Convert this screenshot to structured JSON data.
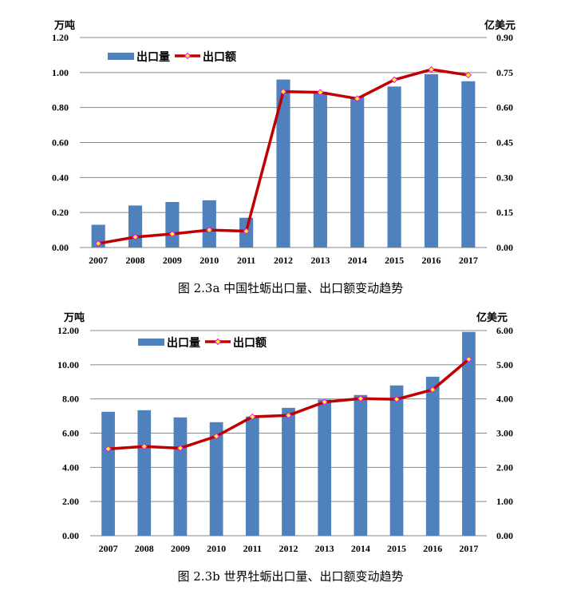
{
  "chart_data": [
    {
      "type": "bar+line",
      "caption": "图 2.3a    中国牡蛎出口量、出口额变动趋势",
      "left_unit": "万吨",
      "right_unit": "亿美元",
      "categories": [
        "2007",
        "2008",
        "2009",
        "2010",
        "2011",
        "2012",
        "2013",
        "2014",
        "2015",
        "2016",
        "2017"
      ],
      "left_ticks": [
        "0.00",
        "0.20",
        "0.40",
        "0.60",
        "0.80",
        "1.00",
        "1.20"
      ],
      "right_ticks": [
        "0.00",
        "0.15",
        "0.30",
        "0.45",
        "0.60",
        "0.75",
        "0.90"
      ],
      "left_ylim": [
        0,
        1.2
      ],
      "right_ylim": [
        0,
        0.9
      ],
      "grid": true,
      "legend_placement": "top-left",
      "series": [
        {
          "name": "出口量",
          "kind": "bar",
          "axis": "left",
          "color": "#4F81BD",
          "values": [
            0.13,
            0.24,
            0.26,
            0.27,
            0.17,
            0.96,
            0.89,
            0.86,
            0.92,
            0.99,
            0.95
          ]
        },
        {
          "name": "出口额",
          "kind": "line",
          "axis": "right",
          "color": "#C00000",
          "marker_color": "#FFFF00",
          "values": [
            0.017,
            0.045,
            0.058,
            0.075,
            0.07,
            0.668,
            0.665,
            0.638,
            0.719,
            0.763,
            0.739
          ]
        }
      ]
    },
    {
      "type": "bar+line",
      "caption": "图 2.3b    世界牡蛎出口量、出口额变动趋势",
      "left_unit": "万吨",
      "right_unit": "亿美元",
      "categories": [
        "2007",
        "2008",
        "2009",
        "2010",
        "2011",
        "2012",
        "2013",
        "2014",
        "2015",
        "2016",
        "2017"
      ],
      "left_ticks": [
        "0.00",
        "2.00",
        "4.00",
        "6.00",
        "8.00",
        "10.00",
        "12.00"
      ],
      "right_ticks": [
        "0.00",
        "1.00",
        "2.00",
        "3.00",
        "4.00",
        "5.00",
        "6.00"
      ],
      "left_ylim": [
        0,
        12
      ],
      "right_ylim": [
        0,
        6
      ],
      "grid": true,
      "legend_placement": "top-left",
      "series": [
        {
          "name": "出口量",
          "kind": "bar",
          "axis": "left",
          "color": "#4F81BD",
          "values": [
            7.25,
            7.34,
            6.92,
            6.64,
            6.97,
            7.48,
            7.96,
            8.23,
            8.79,
            9.3,
            11.92
          ]
        },
        {
          "name": "出口额",
          "kind": "line",
          "axis": "right",
          "color": "#C00000",
          "marker_color": "#FFFF00",
          "values": [
            2.54,
            2.61,
            2.56,
            2.91,
            3.48,
            3.52,
            3.91,
            4.01,
            3.99,
            4.27,
            5.16
          ]
        }
      ]
    }
  ]
}
